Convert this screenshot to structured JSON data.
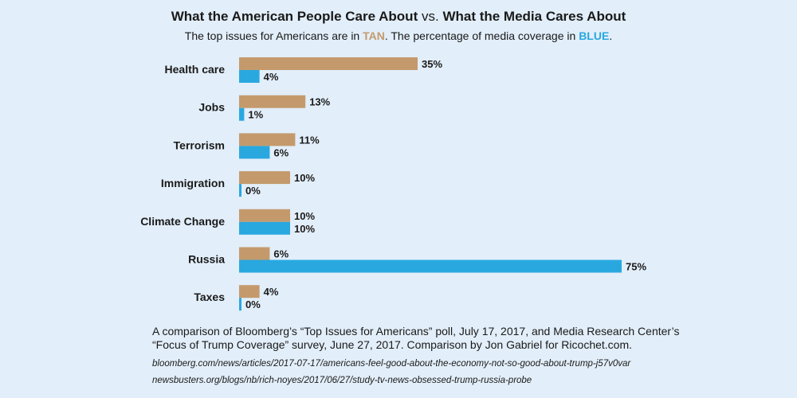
{
  "chart_data": {
    "type": "bar",
    "orientation": "horizontal",
    "title_part1": "What the American People Care About",
    "title_vs": "vs.",
    "title_part2": "What the Media Cares About",
    "subtitle_pre": "The top issues for Americans are in",
    "subtitle_tan": "TAN",
    "subtitle_mid": ". The percentage of media coverage in",
    "subtitle_blue": "BLUE",
    "subtitle_end": ".",
    "categories": [
      "Health care",
      "Jobs",
      "Terrorism",
      "Immigration",
      "Climate Change",
      "Russia",
      "Taxes"
    ],
    "series": [
      {
        "name": "Top issues for Americans",
        "color": "#c49a6c",
        "values": [
          35,
          13,
          11,
          10,
          10,
          6,
          4
        ]
      },
      {
        "name": "Media coverage",
        "color": "#29a8e0",
        "values": [
          4,
          1,
          6,
          0,
          10,
          75,
          0
        ]
      }
    ],
    "unit": "%",
    "xlim": [
      0,
      75
    ],
    "grid": false
  },
  "footer": {
    "line1": "A comparison of Bloomberg’s “Top Issues for Americans” poll, July 17, 2017, and Media Research Center’s",
    "line2": "“Focus of Trump Coverage” survey, June 27, 2017. Comparison by Jon Gabriel for Ricochet.com.",
    "source1": "bloomberg.com/news/articles/2017-07-17/americans-feel-good-about-the-economy-not-so-good-about-trump-j57v0var",
    "source2": "newsbusters.org/blogs/nb/rich-noyes/2017/06/27/study-tv-news-obsessed-trump-russia-probe"
  }
}
